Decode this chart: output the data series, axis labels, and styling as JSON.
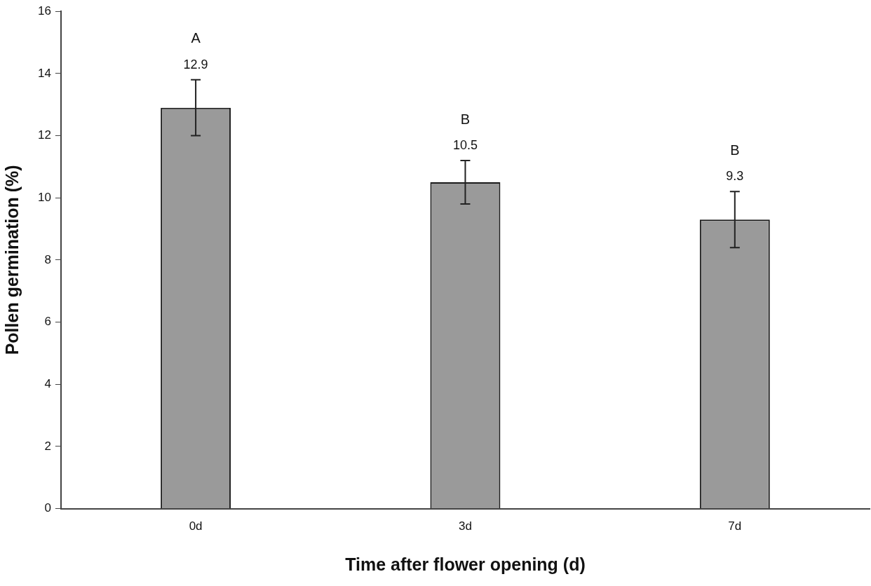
{
  "chart_data": {
    "type": "bar",
    "xlabel": "Time after flower opening (d)",
    "ylabel": "Pollen germination (%)",
    "categories": [
      "0d",
      "3d",
      "7d"
    ],
    "values": [
      12.9,
      10.5,
      9.3
    ],
    "errors": [
      0.9,
      0.7,
      0.9
    ],
    "color": "#9a9a9a",
    "ylim": [
      0,
      16
    ],
    "yticks": [
      0,
      2,
      4,
      6,
      8,
      10,
      12,
      14,
      16
    ],
    "grid": false,
    "legend": false,
    "data_labels": true,
    "annotations": [
      "A",
      "B",
      "B"
    ]
  }
}
